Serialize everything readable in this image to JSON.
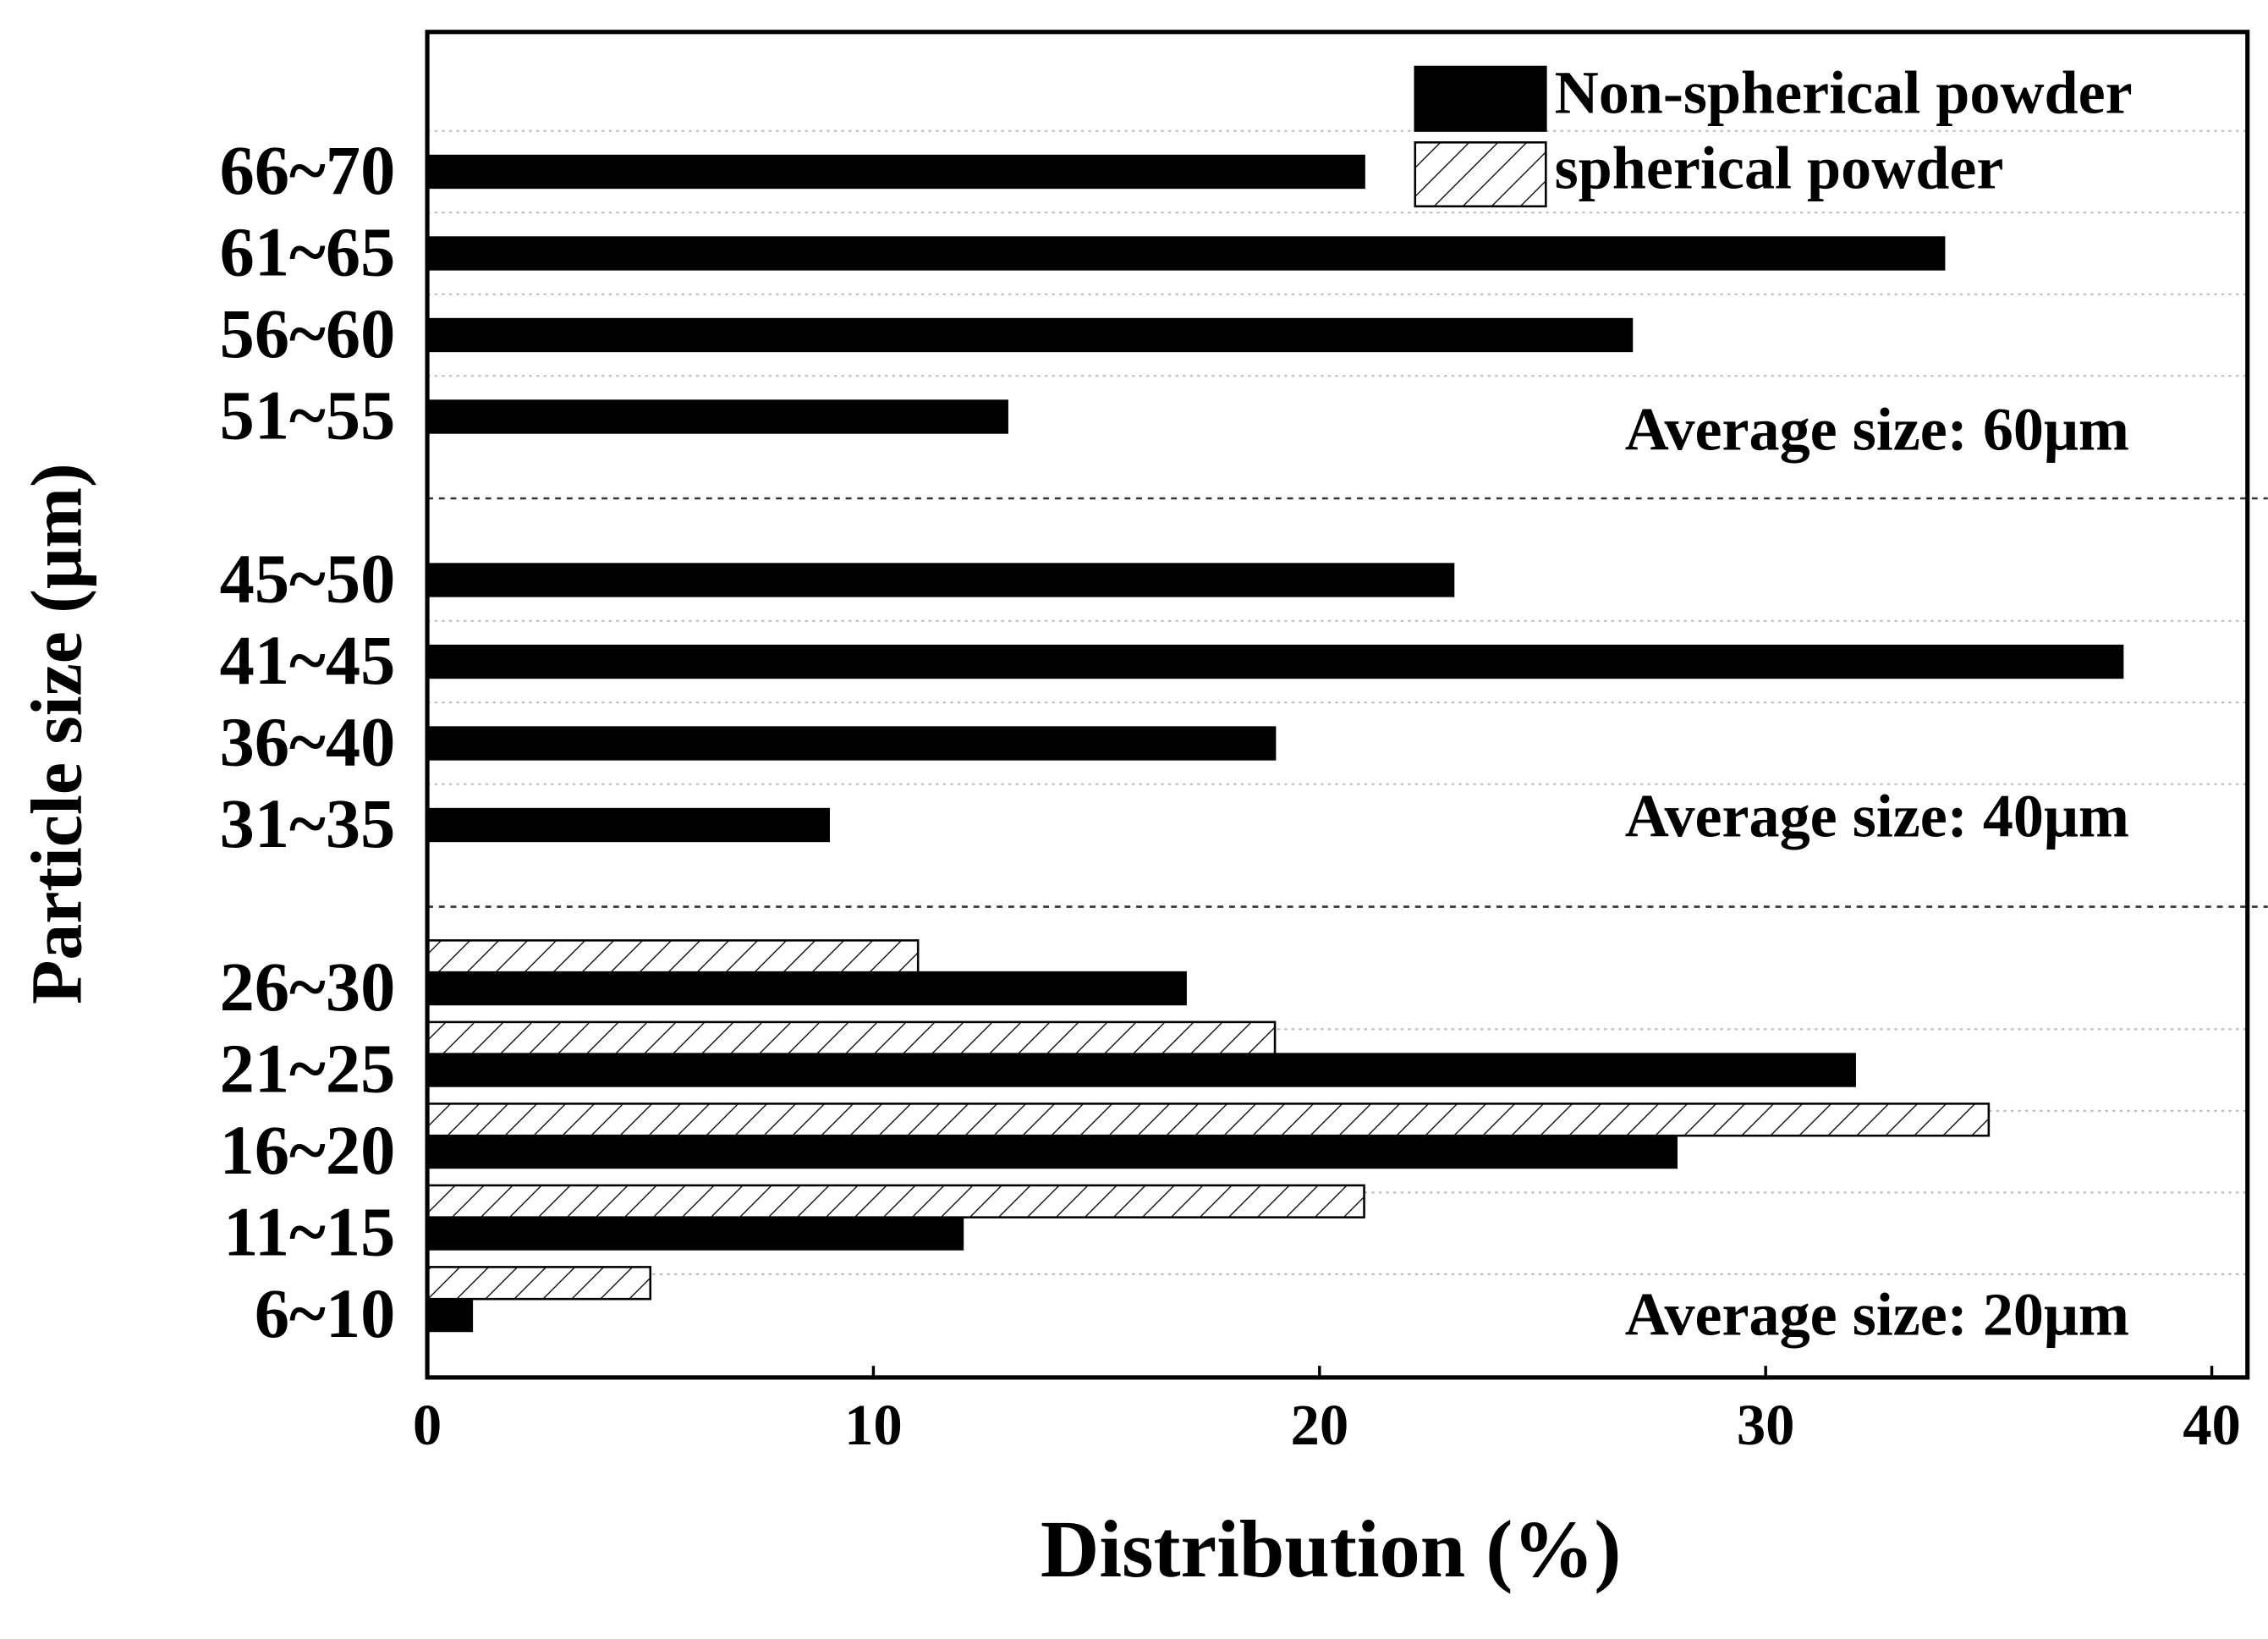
{
  "chart_data": {
    "type": "barh",
    "xlabel": "Distribution (%)",
    "ylabel": "Particle size (μm)",
    "categories": [
      "6~10",
      "11~15",
      "16~20",
      "21~25",
      "26~30",
      null,
      "31~35",
      "36~40",
      "41~45",
      "45~50",
      null,
      "51~55",
      "56~60",
      "61~65",
      "66~70"
    ],
    "series": [
      {
        "name": "Non-spherical powder",
        "color": "#000000",
        "values": [
          1,
          12,
          28,
          32,
          17,
          null,
          9,
          19,
          38,
          23,
          null,
          13,
          27,
          34,
          21
        ]
      },
      {
        "name": "spherical powder",
        "color": "#000000",
        "hatch": "//",
        "values": [
          5,
          21,
          35,
          19,
          11,
          null,
          null,
          null,
          null,
          null,
          null,
          null,
          null,
          null,
          null
        ]
      }
    ],
    "xlim": [
      0,
      40.8
    ],
    "xticks": [
      0,
      10,
      20,
      30,
      40
    ],
    "grid": true,
    "legend": "upper right",
    "annotations": [
      "Average size: 20μm",
      "Average size: 40μm",
      "Average size: 60μm"
    ]
  }
}
